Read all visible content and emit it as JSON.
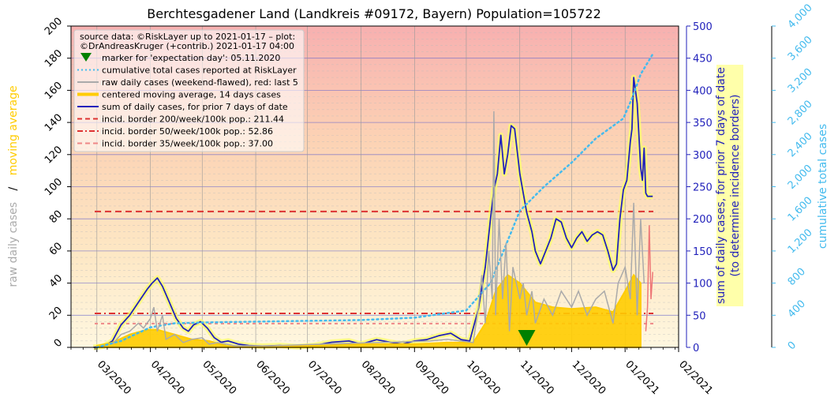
{
  "chart_data": {
    "type": "line",
    "title": "Berchtesgadener Land (Landkreis #09172, Bayern) Population=105722",
    "source_lines": [
      "source data: ©RiskLayer up to 2021-01-17 – plot:",
      "©DrAndreasKruger (+contrib.) 2021-01-17 04:00"
    ],
    "left_axis": {
      "label_parts": [
        "raw daily cases",
        "/",
        "moving average"
      ],
      "label_colors": [
        "#aaaaaa",
        "#000000",
        "#ffcc00"
      ],
      "ylim": [
        0,
        200
      ],
      "ticks": [
        "0",
        "20",
        "40",
        "60",
        "80",
        "100",
        "120",
        "140",
        "160",
        "180",
        "200"
      ]
    },
    "right_axis_1": {
      "label_lines": [
        "sum of daily cases, for prior 7 days of date",
        "(to determine incidence borders)"
      ],
      "color": "#2222bb",
      "ylim": [
        0,
        500
      ],
      "ticks": [
        "0",
        "50",
        "100",
        "150",
        "200",
        "250",
        "300",
        "350",
        "400",
        "450",
        "500"
      ]
    },
    "right_axis_2": {
      "label": "cumulative total cases",
      "color": "#44bbee",
      "ylim": [
        0,
        4000
      ],
      "ticks": [
        "0",
        "400",
        "800",
        "1,200",
        "1,600",
        "2,000",
        "2,400",
        "2,800",
        "3,200",
        "3,600",
        "4,000"
      ]
    },
    "x_ticks": [
      "03/2020",
      "04/2020",
      "05/2020",
      "06/2020",
      "07/2020",
      "08/2020",
      "09/2020",
      "10/2020",
      "11/2020",
      "12/2020",
      "01/2021",
      "02/2021"
    ],
    "x_range": [
      "2020-02-15",
      "2021-02-01"
    ],
    "legend": [
      {
        "text": "marker for 'expectation day': 05.11.2020",
        "kind": "marker",
        "color": "#008000"
      },
      {
        "text": "cumulative total cases reported at RiskLayer",
        "kind": "dotted",
        "color": "#44bbee"
      },
      {
        "text": "raw daily cases (weekend-flawed), red: last 5",
        "kind": "line",
        "color": "#aaaaaa"
      },
      {
        "text": "centered moving average, 14 days cases",
        "kind": "thick",
        "color": "#ffcc00"
      },
      {
        "text": "sum of daily cases, for prior 7 days of date",
        "kind": "line",
        "color": "#2222bb"
      },
      {
        "text": "incid. border 200/week/100k pop.: 211.44",
        "kind": "dashed",
        "color": "#dd3333"
      },
      {
        "text": "incid. border 50/week/100k pop.: 52.86",
        "kind": "dashdot",
        "color": "#dd3333"
      },
      {
        "text": "incid. border 35/week/100k pop.: 37.00",
        "kind": "dashed",
        "color": "#ee8888"
      }
    ],
    "incidence_borders_7day_sum": [
      211.44,
      52.86,
      37.0
    ],
    "expectation_day": "2020-11-05",
    "series": [
      {
        "name": "sum of daily cases, for prior 7 days of date",
        "axis": "right_axis_1",
        "color": "#2222bb",
        "points": [
          [
            "2020-02-28",
            0
          ],
          [
            "2020-03-05",
            2
          ],
          [
            "2020-03-10",
            10
          ],
          [
            "2020-03-15",
            35
          ],
          [
            "2020-03-20",
            50
          ],
          [
            "2020-03-25",
            70
          ],
          [
            "2020-03-30",
            90
          ],
          [
            "2020-04-02",
            100
          ],
          [
            "2020-04-05",
            108
          ],
          [
            "2020-04-08",
            95
          ],
          [
            "2020-04-12",
            70
          ],
          [
            "2020-04-16",
            45
          ],
          [
            "2020-04-20",
            30
          ],
          [
            "2020-04-23",
            25
          ],
          [
            "2020-04-26",
            35
          ],
          [
            "2020-04-30",
            40
          ],
          [
            "2020-05-04",
            30
          ],
          [
            "2020-05-08",
            15
          ],
          [
            "2020-05-12",
            8
          ],
          [
            "2020-05-16",
            10
          ],
          [
            "2020-05-22",
            5
          ],
          [
            "2020-05-28",
            3
          ],
          [
            "2020-06-05",
            2
          ],
          [
            "2020-06-15",
            3
          ],
          [
            "2020-06-25",
            1
          ],
          [
            "2020-07-05",
            3
          ],
          [
            "2020-07-15",
            8
          ],
          [
            "2020-07-25",
            10
          ],
          [
            "2020-08-01",
            5
          ],
          [
            "2020-08-10",
            12
          ],
          [
            "2020-08-18",
            8
          ],
          [
            "2020-08-25",
            5
          ],
          [
            "2020-09-01",
            10
          ],
          [
            "2020-09-08",
            12
          ],
          [
            "2020-09-15",
            18
          ],
          [
            "2020-09-22",
            22
          ],
          [
            "2020-09-28",
            12
          ],
          [
            "2020-10-03",
            10
          ],
          [
            "2020-10-08",
            60
          ],
          [
            "2020-10-12",
            125
          ],
          [
            "2020-10-15",
            200
          ],
          [
            "2020-10-17",
            245
          ],
          [
            "2020-10-19",
            270
          ],
          [
            "2020-10-21",
            330
          ],
          [
            "2020-10-23",
            270
          ],
          [
            "2020-10-25",
            300
          ],
          [
            "2020-10-27",
            345
          ],
          [
            "2020-10-29",
            340
          ],
          [
            "2020-11-01",
            270
          ],
          [
            "2020-11-03",
            240
          ],
          [
            "2020-11-05",
            210
          ],
          [
            "2020-11-08",
            180
          ],
          [
            "2020-11-10",
            150
          ],
          [
            "2020-11-13",
            130
          ],
          [
            "2020-11-16",
            150
          ],
          [
            "2020-11-19",
            170
          ],
          [
            "2020-11-22",
            200
          ],
          [
            "2020-11-25",
            195
          ],
          [
            "2020-11-28",
            170
          ],
          [
            "2020-12-01",
            155
          ],
          [
            "2020-12-04",
            170
          ],
          [
            "2020-12-07",
            180
          ],
          [
            "2020-12-10",
            165
          ],
          [
            "2020-12-13",
            175
          ],
          [
            "2020-12-16",
            180
          ],
          [
            "2020-12-19",
            175
          ],
          [
            "2020-12-22",
            150
          ],
          [
            "2020-12-25",
            120
          ],
          [
            "2020-12-27",
            130
          ],
          [
            "2020-12-29",
            200
          ],
          [
            "2020-12-31",
            245
          ],
          [
            "2021-01-02",
            260
          ],
          [
            "2021-01-04",
            320
          ],
          [
            "2021-01-05",
            340
          ],
          [
            "2021-01-06",
            420
          ],
          [
            "2021-01-08",
            380
          ],
          [
            "2021-01-10",
            280
          ],
          [
            "2021-01-11",
            260
          ],
          [
            "2021-01-12",
            310
          ],
          [
            "2021-01-13",
            240
          ],
          [
            "2021-01-14",
            235
          ],
          [
            "2021-01-17",
            235
          ]
        ]
      },
      {
        "name": "centered moving average, 14 days cases",
        "axis": "left_axis",
        "color": "#ffcc00",
        "points": [
          [
            "2020-03-01",
            1
          ],
          [
            "2020-03-10",
            3
          ],
          [
            "2020-03-20",
            8
          ],
          [
            "2020-03-30",
            11
          ],
          [
            "2020-04-05",
            11
          ],
          [
            "2020-04-15",
            8
          ],
          [
            "2020-04-25",
            5
          ],
          [
            "2020-05-05",
            4
          ],
          [
            "2020-05-15",
            1
          ],
          [
            "2020-06-01",
            0.5
          ],
          [
            "2020-07-01",
            1
          ],
          [
            "2020-08-01",
            2
          ],
          [
            "2020-09-01",
            2
          ],
          [
            "2020-09-20",
            3
          ],
          [
            "2020-10-05",
            3
          ],
          [
            "2020-10-12",
            15
          ],
          [
            "2020-10-18",
            35
          ],
          [
            "2020-10-25",
            45
          ],
          [
            "2020-11-01",
            40
          ],
          [
            "2020-11-10",
            28
          ],
          [
            "2020-11-20",
            25
          ],
          [
            "2020-12-01",
            24
          ],
          [
            "2020-12-15",
            25
          ],
          [
            "2020-12-25",
            22
          ],
          [
            "2021-01-01",
            35
          ],
          [
            "2021-01-06",
            45
          ],
          [
            "2021-01-10",
            40
          ]
        ]
      },
      {
        "name": "cumulative total cases reported at RiskLayer",
        "axis": "right_axis_2",
        "color": "#44bbee",
        "points": [
          [
            "2020-03-01",
            0
          ],
          [
            "2020-03-15",
            80
          ],
          [
            "2020-04-01",
            250
          ],
          [
            "2020-04-15",
            300
          ],
          [
            "2020-05-01",
            310
          ],
          [
            "2020-06-01",
            320
          ],
          [
            "2020-07-01",
            330
          ],
          [
            "2020-08-01",
            340
          ],
          [
            "2020-09-01",
            370
          ],
          [
            "2020-10-01",
            460
          ],
          [
            "2020-10-15",
            800
          ],
          [
            "2020-11-01",
            1700
          ],
          [
            "2020-11-15",
            2000
          ],
          [
            "2020-12-01",
            2300
          ],
          [
            "2020-12-15",
            2600
          ],
          [
            "2020-12-31",
            2850
          ],
          [
            "2021-01-05",
            3100
          ],
          [
            "2021-01-10",
            3400
          ],
          [
            "2021-01-17",
            3650
          ]
        ]
      },
      {
        "name": "raw daily cases (weekend-flawed), red: last 5",
        "axis": "left_axis",
        "color": "#aaaaaa",
        "points": [
          [
            "2020-03-10",
            2
          ],
          [
            "2020-03-15",
            8
          ],
          [
            "2020-03-20",
            10
          ],
          [
            "2020-03-25",
            15
          ],
          [
            "2020-03-28",
            12
          ],
          [
            "2020-04-01",
            18
          ],
          [
            "2020-04-03",
            25
          ],
          [
            "2020-04-05",
            10
          ],
          [
            "2020-04-08",
            20
          ],
          [
            "2020-04-10",
            5
          ],
          [
            "2020-04-15",
            8
          ],
          [
            "2020-04-20",
            3
          ],
          [
            "2020-04-25",
            5
          ],
          [
            "2020-05-01",
            6
          ],
          [
            "2020-05-05",
            2
          ],
          [
            "2020-05-10",
            3
          ],
          [
            "2020-05-20",
            1
          ],
          [
            "2020-06-10",
            1
          ],
          [
            "2020-07-10",
            2
          ],
          [
            "2020-08-10",
            3
          ],
          [
            "2020-09-10",
            4
          ],
          [
            "2020-09-20",
            5
          ],
          [
            "2020-10-05",
            3
          ],
          [
            "2020-10-08",
            25
          ],
          [
            "2020-10-10",
            45
          ],
          [
            "2020-10-12",
            15
          ],
          [
            "2020-10-14",
            60
          ],
          [
            "2020-10-16",
            30
          ],
          [
            "2020-10-17",
            147
          ],
          [
            "2020-10-18",
            20
          ],
          [
            "2020-10-20",
            80
          ],
          [
            "2020-10-22",
            30
          ],
          [
            "2020-10-24",
            65
          ],
          [
            "2020-10-26",
            10
          ],
          [
            "2020-10-28",
            50
          ],
          [
            "2020-11-01",
            30
          ],
          [
            "2020-11-03",
            40
          ],
          [
            "2020-11-05",
            20
          ],
          [
            "2020-11-08",
            35
          ],
          [
            "2020-11-10",
            15
          ],
          [
            "2020-11-15",
            30
          ],
          [
            "2020-11-20",
            20
          ],
          [
            "2020-11-25",
            35
          ],
          [
            "2020-12-01",
            25
          ],
          [
            "2020-12-05",
            35
          ],
          [
            "2020-12-10",
            20
          ],
          [
            "2020-12-15",
            30
          ],
          [
            "2020-12-20",
            35
          ],
          [
            "2020-12-25",
            15
          ],
          [
            "2020-12-28",
            40
          ],
          [
            "2021-01-01",
            50
          ],
          [
            "2021-01-04",
            30
          ],
          [
            "2021-01-06",
            90
          ],
          [
            "2021-01-08",
            20
          ],
          [
            "2021-01-10",
            80
          ],
          [
            "2021-01-12",
            40
          ]
        ]
      },
      {
        "name": "red: last 5",
        "axis": "left_axis",
        "color": "#ee7777",
        "points": [
          [
            "2021-01-13",
            10
          ],
          [
            "2021-01-14",
            25
          ],
          [
            "2021-01-15",
            76
          ],
          [
            "2021-01-16",
            30
          ],
          [
            "2021-01-17",
            47
          ]
        ]
      }
    ]
  }
}
